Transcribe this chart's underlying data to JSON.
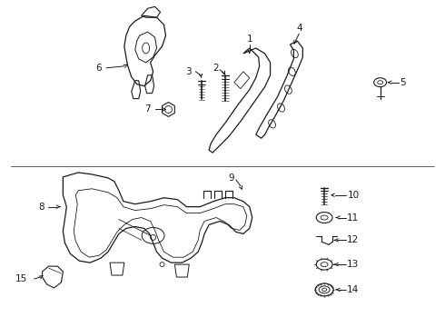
{
  "bg_color": "#ffffff",
  "line_color": "#1a1a1a",
  "fig_width": 4.9,
  "fig_height": 3.6,
  "dpi": 100,
  "label_fontsize": 7.5
}
